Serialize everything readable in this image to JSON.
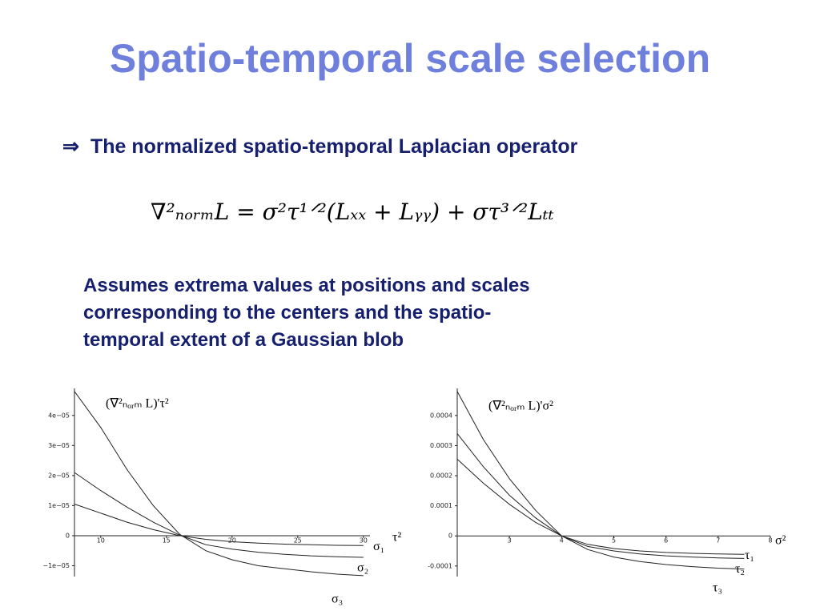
{
  "title": "Spatio-temporal scale selection",
  "bullet": {
    "symbol": "⇒",
    "text": "The normalized spatio-temporal Laplacian operator"
  },
  "formula": "∇²ₙₒᵣₘL = σ²τ¹ᐟ²(Lₓₓ + Lᵧᵧ) + στ³ᐟ²Lₜₜ",
  "description": [
    "Assumes extrema values at positions and scales",
    "corresponding to the centers and the spatio-",
    "temporal extent of a Gaussian blob"
  ],
  "chart_data": [
    {
      "type": "line",
      "y_label": "(∇²ₙₒᵣₘ L)'τ²",
      "x_label": "τ²",
      "x": [
        8,
        10,
        12,
        14,
        16,
        18,
        20,
        22,
        24,
        26,
        28,
        30
      ],
      "xlim": [
        8,
        30.5
      ],
      "xticks": [
        10,
        15,
        20,
        25,
        30
      ],
      "ylim": [
        -1.36e-05,
        4.9e-05
      ],
      "yticks": [
        {
          "value": -1e-05,
          "label": "−1e−05"
        },
        {
          "value": 0,
          "label": "0"
        },
        {
          "value": 1e-05,
          "label": "1e−05"
        },
        {
          "value": 2e-05,
          "label": "2e−05"
        },
        {
          "value": 3e-05,
          "label": "3e−05"
        },
        {
          "value": 4e-05,
          "label": "4e−05"
        }
      ],
      "series": [
        {
          "name": "σ₁",
          "color": "#222222",
          "values": [
            1.05e-05,
            7.5e-06,
            4.5e-06,
            2e-06,
            0,
            -1.2e-06,
            -2e-06,
            -2.5e-06,
            -2.8e-06,
            -3e-06,
            -3.2e-06,
            -3.3e-06
          ]
        },
        {
          "name": "σ₂",
          "color": "#222222",
          "values": [
            2.1e-05,
            1.5e-05,
            9.5e-06,
            4.5e-06,
            2e-07,
            -3e-06,
            -4.5e-06,
            -5.5e-06,
            -6.2e-06,
            -6.7e-06,
            -7e-06,
            -7.2e-06
          ]
        },
        {
          "name": "σ₃",
          "color": "#222222",
          "values": [
            4.8e-05,
            3.6e-05,
            2.2e-05,
            1e-05,
            5e-07,
            -5e-06,
            -8e-06,
            -1e-05,
            -1.1e-05,
            -1.2e-05,
            -1.28e-05,
            -1.33e-05
          ]
        }
      ]
    },
    {
      "type": "line",
      "y_label": "(∇²ₙₒᵣₘ L)'σ²",
      "x_label": "σ²",
      "x": [
        2,
        2.5,
        3,
        3.5,
        4,
        4.5,
        5,
        5.5,
        6,
        6.5,
        7,
        7.5
      ],
      "xlim": [
        2,
        8
      ],
      "xticks": [
        3,
        4,
        5,
        6,
        7,
        8
      ],
      "ylim": [
        -0.000135,
        0.00049
      ],
      "yticks": [
        -0.0001,
        0,
        0.0001,
        0.0002,
        0.0003,
        0.0004
      ],
      "series": [
        {
          "name": "τ₁",
          "color": "#222222",
          "values": [
            0.000255,
            0.000175,
            0.000105,
            4.5e-05,
            0,
            -2.8e-05,
            -4.2e-05,
            -5e-05,
            -5.5e-05,
            -5.8e-05,
            -6e-05,
            -6.1e-05
          ]
        },
        {
          "name": "τ₂",
          "color": "#222222",
          "values": [
            0.00034,
            0.00023,
            0.000135,
            6e-05,
            0,
            -3.5e-05,
            -5e-05,
            -6e-05,
            -6.6e-05,
            -7e-05,
            -7.3e-05,
            -7.5e-05
          ]
        },
        {
          "name": "τ₃",
          "color": "#222222",
          "values": [
            0.00048,
            0.00032,
            0.00019,
            8.5e-05,
            0,
            -4.5e-05,
            -7e-05,
            -8.5e-05,
            -9.5e-05,
            -0.000102,
            -0.000107,
            -0.00011
          ]
        }
      ]
    }
  ]
}
